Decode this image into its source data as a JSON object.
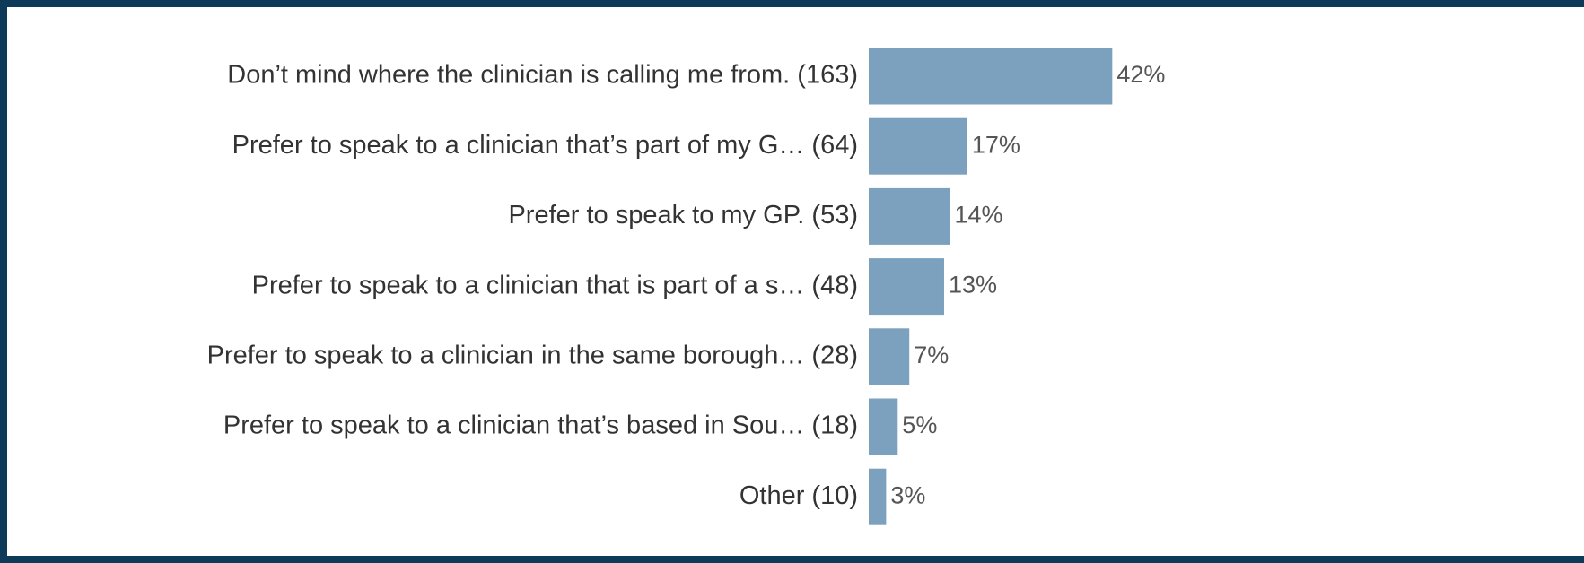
{
  "chart_data": {
    "type": "barh",
    "categories": [
      "Don’t mind where the clinician is calling me from. (163)",
      "Prefer to speak to a clinician that’s part of my G… (64)",
      "Prefer to speak to my GP. (53)",
      "Prefer to speak to a clinician that is part of a s… (48)",
      "Prefer to speak to a clinician in the same borough… (28)",
      "Prefer to speak to a clinician that’s based in Sou… (18)",
      "Other (10)"
    ],
    "values": [
      42,
      17,
      14,
      13,
      7,
      5,
      3
    ],
    "value_labels": [
      "42%",
      "17%",
      "14%",
      "13%",
      "7%",
      "5%",
      "3%"
    ],
    "color": "#7ba1be"
  }
}
